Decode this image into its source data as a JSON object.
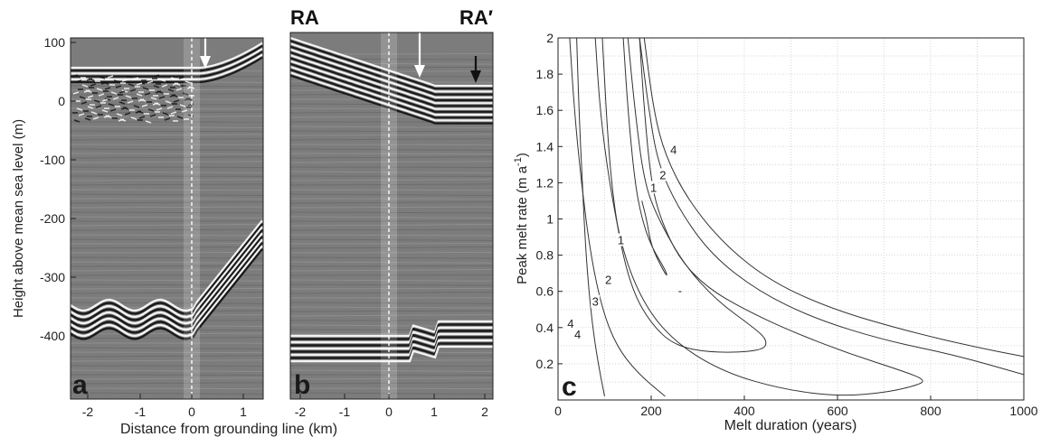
{
  "panels": {
    "a": {
      "label": "a",
      "ylabel": "Height above mean sea level (m)",
      "yticks": [
        "100",
        "0",
        "-100",
        "-200",
        "-300",
        "-400"
      ],
      "xticks": [
        "-2",
        "-1",
        "0",
        "1"
      ]
    },
    "b": {
      "label": "b",
      "left_marker": "RA",
      "right_marker": "RA′",
      "xticks": [
        "-2",
        "-1",
        "0",
        "1",
        "2"
      ]
    },
    "shared_xlabel": "Distance from grounding line (km)",
    "colors": {
      "radar_background": "#7c7c7c",
      "arrow_white": "#ffffff",
      "arrow_black": "#111111"
    }
  },
  "chart_data": {
    "type": "line",
    "panel_label": "c",
    "xlabel": "Melt duration (years)",
    "ylabel": "Peak melt rate (m a",
    "ylabel_superscript": "-1",
    "ylabel_close": ")",
    "xlim": [
      0,
      1000
    ],
    "ylim": [
      0,
      2
    ],
    "xticks": [
      0,
      200,
      400,
      600,
      800,
      1000
    ],
    "yticks": [
      0.2,
      0.4,
      0.6,
      0.8,
      1,
      1.2,
      1.4,
      1.6,
      1.8,
      2
    ],
    "grid": true,
    "extra_marks": [
      {
        "text": "-",
        "x": 262,
        "y": 0.6
      }
    ],
    "series": [
      {
        "points": [
          [
            40,
            2.0
          ],
          [
            45,
            1.6
          ],
          [
            52,
            1.2
          ],
          [
            60,
            0.8
          ],
          [
            70,
            0.5
          ],
          [
            80,
            0.3
          ],
          [
            90,
            0.15
          ],
          [
            100,
            0.02
          ]
        ],
        "labels": [
          {
            "text": "4",
            "x": 42,
            "y": 0.36
          }
        ]
      },
      {
        "points": [
          [
            25,
            2.0
          ],
          [
            35,
            1.6
          ],
          [
            50,
            1.2
          ],
          [
            70,
            0.8
          ],
          [
            95,
            0.5
          ],
          [
            125,
            0.3
          ],
          [
            170,
            0.15
          ],
          [
            230,
            0.02
          ]
        ],
        "labels": [
          {
            "text": "4",
            "x": 27,
            "y": 0.42
          }
        ]
      },
      {
        "points": [
          [
            80,
            2.0
          ],
          [
            90,
            1.6
          ],
          [
            110,
            1.2
          ],
          [
            140,
            0.8
          ],
          [
            190,
            0.5
          ],
          [
            260,
            0.3
          ],
          [
            360,
            0.15
          ],
          [
            480,
            0.06
          ],
          [
            600,
            0.02
          ],
          [
            700,
            0.04
          ],
          [
            770,
            0.08
          ],
          [
            790,
            0.11
          ],
          [
            740,
            0.16
          ],
          [
            620,
            0.26
          ],
          [
            500,
            0.38
          ],
          [
            400,
            0.5
          ],
          [
            320,
            0.62
          ],
          [
            260,
            0.78
          ],
          [
            220,
            1.0
          ],
          [
            200,
            1.2
          ],
          [
            185,
            1.6
          ],
          [
            175,
            2.0
          ]
        ],
        "labels": [
          {
            "text": "3",
            "x": 80,
            "y": 0.54
          },
          {
            "text": "2",
            "x": 108,
            "y": 0.66
          },
          {
            "text": "1",
            "x": 135,
            "y": 0.88
          }
        ]
      },
      {
        "points": [
          [
            140,
            2.0
          ],
          [
            150,
            1.6
          ],
          [
            165,
            1.2
          ],
          [
            180,
            1.0
          ],
          [
            200,
            0.85
          ],
          [
            230,
            0.72
          ],
          [
            235,
            0.68
          ],
          [
            225,
            0.72
          ],
          [
            200,
            0.85
          ],
          [
            190,
            1.0
          ],
          [
            180,
            1.1
          ]
        ],
        "labels": [
          {
            "text": "1",
            "x": 205,
            "y": 1.17
          }
        ]
      },
      {
        "points": [
          [
            150,
            2.0
          ],
          [
            165,
            1.6
          ],
          [
            185,
            1.2
          ],
          [
            215,
            1.0
          ],
          [
            270,
            0.75
          ],
          [
            340,
            0.55
          ],
          [
            420,
            0.4
          ],
          [
            450,
            0.33
          ],
          [
            440,
            0.27
          ],
          [
            330,
            0.26
          ],
          [
            250,
            0.3
          ],
          [
            200,
            0.42
          ],
          [
            160,
            0.6
          ],
          [
            130,
            0.9
          ],
          [
            110,
            1.3
          ],
          [
            95,
            2.0
          ]
        ],
        "labels": [
          {
            "text": "2",
            "x": 225,
            "y": 1.24
          }
        ]
      },
      {
        "points": [
          [
            175,
            2.0
          ],
          [
            195,
            1.6
          ],
          [
            215,
            1.3
          ],
          [
            260,
            1.05
          ],
          [
            330,
            0.8
          ],
          [
            430,
            0.6
          ],
          [
            550,
            0.45
          ],
          [
            700,
            0.33
          ],
          [
            850,
            0.25
          ],
          [
            1000,
            0.14
          ]
        ],
        "labels": []
      },
      {
        "points": [
          [
            185,
            2.0
          ],
          [
            205,
            1.6
          ],
          [
            230,
            1.35
          ],
          [
            280,
            1.1
          ],
          [
            360,
            0.85
          ],
          [
            460,
            0.65
          ],
          [
            590,
            0.5
          ],
          [
            750,
            0.38
          ],
          [
            900,
            0.29
          ],
          [
            1000,
            0.24
          ]
        ],
        "labels": [
          {
            "text": "4",
            "x": 248,
            "y": 1.38
          }
        ]
      }
    ]
  }
}
